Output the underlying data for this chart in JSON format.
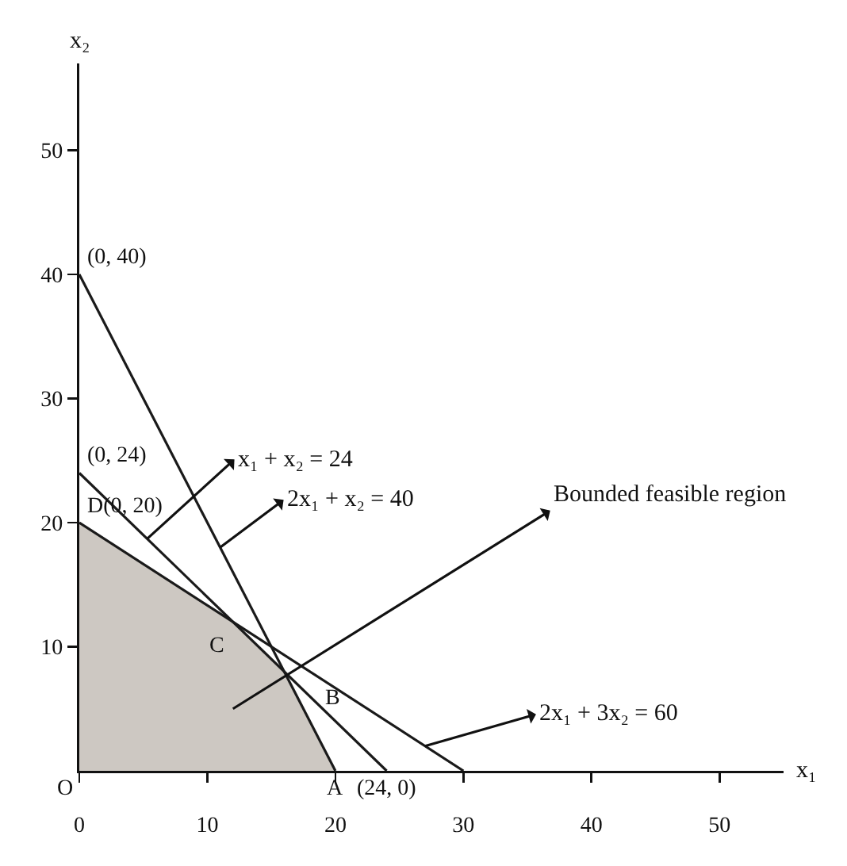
{
  "chart_data": {
    "type": "line",
    "xlabel": "x₁",
    "ylabel": "x₂",
    "xlim": [
      0,
      55
    ],
    "ylim": [
      0,
      57
    ],
    "xticks": [
      0,
      10,
      20,
      30,
      40,
      50
    ],
    "yticks": [
      10,
      20,
      30,
      40,
      50
    ],
    "grid": false,
    "marker": "none",
    "line_style": "solid",
    "series": [
      {
        "color": "#1a1a1a",
        "x": [
          0,
          24
        ],
        "values": [
          24,
          0
        ]
      },
      {
        "color": "#1a1a1a",
        "x": [
          0,
          20
        ],
        "values": [
          40,
          0
        ]
      },
      {
        "color": "#1a1a1a",
        "x": [
          0,
          30
        ],
        "values": [
          20,
          0
        ]
      },
      {
        "type": "area",
        "color": "#cdc8c2",
        "x": [
          0,
          12,
          16,
          20
        ],
        "values": [
          20,
          12,
          8,
          0
        ]
      }
    ],
    "annotations": [
      {
        "text": "(0, 40)",
        "x": 0,
        "y": 40
      },
      {
        "text": "(0, 24)",
        "x": 0,
        "y": 24
      },
      {
        "text": "D(0, 20)",
        "x": 0,
        "y": 20
      },
      {
        "text": "C",
        "x": 12,
        "y": 12
      },
      {
        "text": "B",
        "x": 16,
        "y": 8
      },
      {
        "text": "O",
        "x": 0,
        "y": 0
      },
      {
        "text": "A",
        "x": 20,
        "y": 0
      },
      {
        "text": "(24, 0)",
        "x": 24,
        "y": 0
      },
      {
        "text": "x₁ + x₂ = 24",
        "x": 5.3,
        "y": 18.7
      },
      {
        "text": "2x₁ + x₂ = 40",
        "x": 11,
        "y": 18
      },
      "Bounded feasible region",
      {
        "text": "2x₁ + 3x₂ = 60",
        "x": 27,
        "y": 2
      }
    ]
  }
}
